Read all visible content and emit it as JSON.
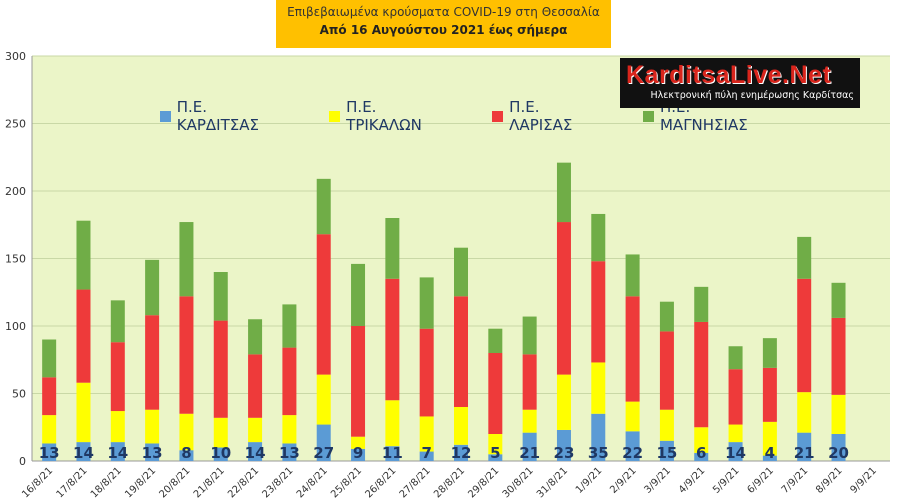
{
  "title": {
    "line1": "Επιβεβαιωμένα κρούσματα COVID-19 στη Θεσσαλία",
    "line2": "Από 16 Αυγούστου 2021 έως σήμερα"
  },
  "logo": {
    "brand": "KarditsaLive.Net",
    "tagline": "Ηλεκτρονική πύλη ενημέρωσης Καρδίτσας"
  },
  "colors": {
    "plot_bg": "#ebf5c8",
    "karditsa": "#5b9bd5",
    "trikala": "#ffff00",
    "larisa": "#ee3a3a",
    "magnisia": "#70ad47",
    "title_bg": "#ffc000"
  },
  "chart_data": {
    "type": "bar",
    "stacked": true,
    "title": "Επιβεβαιωμένα κρούσματα COVID-19 στη Θεσσαλία",
    "subtitle": "Από 16 Αυγούστου 2021 έως σήμερα",
    "ylim": [
      0,
      300
    ],
    "yticks": [
      0,
      50,
      100,
      150,
      200,
      250,
      300
    ],
    "grid": true,
    "legend_position": "top",
    "categories": [
      "16/8/21",
      "17/8/21",
      "18/8/21",
      "19/8/21",
      "20/8/21",
      "21/8/21",
      "22/8/21",
      "23/8/21",
      "24/8/21",
      "25/8/21",
      "26/8/21",
      "27/8/21",
      "28/8/21",
      "29/8/21",
      "30/8/21",
      "31/8/21",
      "1/9/21",
      "2/9/21",
      "3/9/21",
      "4/9/21",
      "5/9/21",
      "6/9/21",
      "7/9/21",
      "8/9/21",
      "9/9/21"
    ],
    "series": [
      {
        "name": "Π.Ε. ΚΑΡΔΙΤΣΑΣ",
        "color_key": "karditsa",
        "values": [
          13,
          14,
          14,
          13,
          8,
          10,
          14,
          13,
          27,
          9,
          11,
          7,
          12,
          5,
          21,
          23,
          35,
          22,
          15,
          6,
          14,
          4,
          21,
          20,
          0
        ]
      },
      {
        "name": "Π.Ε. ΤΡΙΚΑΛΩΝ",
        "color_key": "trikala",
        "values": [
          21,
          44,
          23,
          25,
          27,
          22,
          18,
          21,
          37,
          9,
          34,
          26,
          28,
          15,
          17,
          41,
          38,
          22,
          23,
          19,
          13,
          25,
          30,
          29,
          0
        ]
      },
      {
        "name": "Π.Ε. ΛΑΡΙΣΑΣ",
        "color_key": "larisa",
        "values": [
          28,
          69,
          51,
          70,
          87,
          72,
          47,
          50,
          104,
          82,
          90,
          65,
          82,
          60,
          41,
          113,
          75,
          78,
          58,
          78,
          41,
          40,
          84,
          57,
          0
        ]
      },
      {
        "name": "Π.Ε. ΜΑΓΝΗΣΙΑΣ",
        "color_key": "magnisia",
        "values": [
          28,
          51,
          31,
          41,
          55,
          36,
          26,
          32,
          41,
          46,
          45,
          38,
          36,
          18,
          28,
          44,
          35,
          31,
          22,
          26,
          17,
          22,
          31,
          26,
          0
        ]
      }
    ],
    "data_labels_series": "Π.Ε. ΚΑΡΔΙΤΣΑΣ",
    "data_labels": [
      "13",
      "14",
      "14",
      "13",
      "8",
      "10",
      "14",
      "13",
      "27",
      "9",
      "11",
      "7",
      "12",
      "5",
      "21",
      "23",
      "35",
      "22",
      "15",
      "6",
      "14",
      "4",
      "21",
      "20",
      ""
    ]
  }
}
